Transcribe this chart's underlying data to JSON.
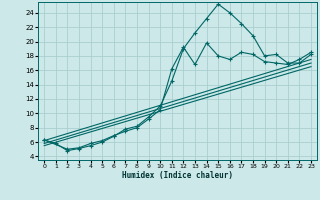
{
  "xlabel": "Humidex (Indice chaleur)",
  "xlim": [
    -0.5,
    23.5
  ],
  "ylim": [
    3.5,
    25.5
  ],
  "yticks": [
    4,
    6,
    8,
    10,
    12,
    14,
    16,
    18,
    20,
    22,
    24
  ],
  "xticks": [
    0,
    1,
    2,
    3,
    4,
    5,
    6,
    7,
    8,
    9,
    10,
    11,
    12,
    13,
    14,
    15,
    16,
    17,
    18,
    19,
    20,
    21,
    22,
    23
  ],
  "bg_color": "#cce8e8",
  "grid_color": "#aacece",
  "line_color": "#006666",
  "curve1_x": [
    0,
    1,
    2,
    3,
    4,
    5,
    6,
    7,
    8,
    9,
    10,
    11,
    12,
    13,
    14,
    15,
    16,
    17,
    18,
    19,
    20,
    21,
    22,
    23
  ],
  "curve1_y": [
    6.3,
    5.8,
    4.8,
    5.1,
    5.5,
    6.0,
    6.8,
    7.8,
    8.2,
    9.5,
    11.0,
    14.5,
    19.0,
    21.2,
    23.2,
    25.2,
    24.0,
    22.5,
    20.8,
    18.0,
    18.2,
    17.0,
    17.0,
    18.2
  ],
  "curve2_x": [
    0,
    2,
    3,
    4,
    5,
    6,
    7,
    8,
    9,
    10,
    11,
    12,
    13,
    14,
    15,
    16,
    17,
    18,
    19,
    20,
    21,
    22,
    23
  ],
  "curve2_y": [
    6.3,
    5.0,
    5.2,
    5.8,
    6.2,
    6.9,
    7.5,
    8.0,
    9.2,
    10.5,
    16.2,
    19.2,
    16.8,
    19.8,
    18.0,
    17.5,
    18.5,
    18.2,
    17.2,
    17.0,
    16.8,
    17.5,
    18.5
  ],
  "line1_x": [
    0,
    23
  ],
  "line1_y": [
    5.5,
    16.5
  ],
  "line2_x": [
    0,
    23
  ],
  "line2_y": [
    5.8,
    17.0
  ],
  "line3_x": [
    0,
    23
  ],
  "line3_y": [
    6.2,
    17.5
  ]
}
